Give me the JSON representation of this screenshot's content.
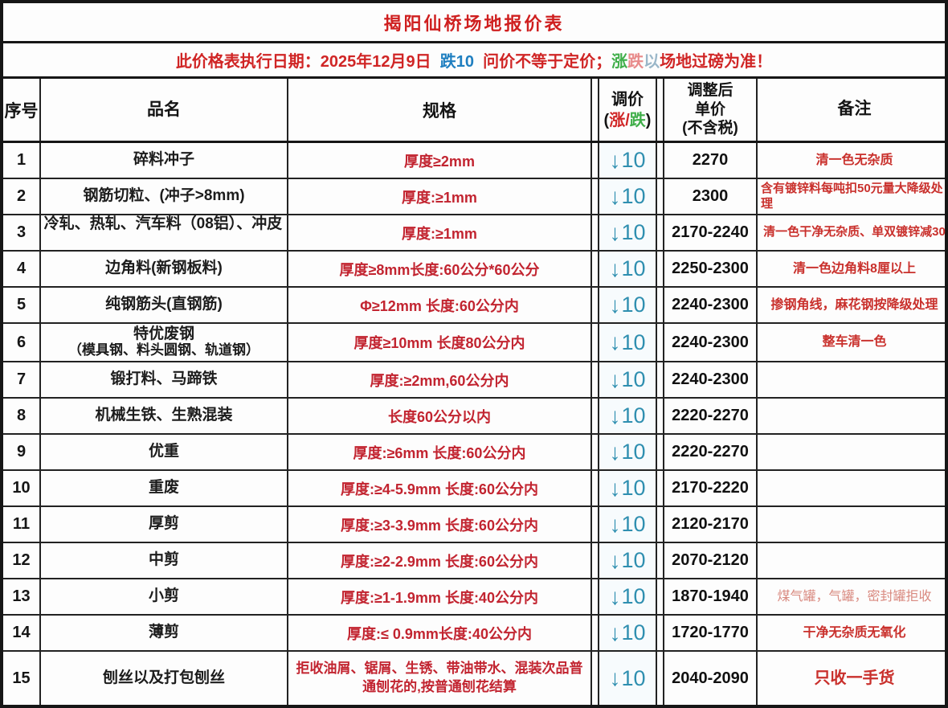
{
  "title": "揭阳仙桥场地报价表",
  "notice": {
    "segments": [
      {
        "text": "此价格表执行日期：2025年12月9日  "
      },
      {
        "text": "跌10"
      },
      {
        "text": "  问价不等于定价；"
      },
      {
        "text": "涨"
      },
      {
        "text": "跌"
      },
      {
        "text": "以"
      },
      {
        "text": "场地过磅为准！"
      }
    ]
  },
  "header": {
    "seq": "序号",
    "name": "品名",
    "spec": "规格",
    "adjust_title": "调价",
    "adjust_open": "(",
    "adjust_up": "涨",
    "adjust_slash": "/",
    "adjust_down": "跌",
    "adjust_close": ")",
    "price_line1": "调整后",
    "price_line2": "单价",
    "price_line3": "(不含税)",
    "remark": "备注"
  },
  "colors": {
    "title_red": "#cf1f1f",
    "notice_red": "#d02525",
    "notice_blue": "#1f7fc0",
    "notice_green": "#3fae49",
    "spec_red": "#c22430",
    "adjust_blue": "#2f8fb0",
    "remark_red": "#c9302c",
    "border_black": "#161616"
  },
  "rows": [
    {
      "seq": "1",
      "name": "碎料冲子",
      "name2": "",
      "spec": "厚度≥2mm",
      "arrow": "↓",
      "amount": "10",
      "price": "2270",
      "remark": "清一色无杂质"
    },
    {
      "seq": "2",
      "name": "钢筋切粒、(冲子>8mm)",
      "name2": "",
      "spec": "厚度:≥1mm",
      "arrow": "↓",
      "amount": "10",
      "price": "2300",
      "remark": "含有镀锌料每吨扣50元量大降级处理"
    },
    {
      "seq": "3",
      "name": "冷轧、热轧、汽车料（08铝）、冲皮",
      "name2": "",
      "spec": "厚度:≥1mm",
      "arrow": "↓",
      "amount": "10",
      "price": "2170-2240",
      "remark": "清一色干净无杂质、单双镀锌减30"
    },
    {
      "seq": "4",
      "name": "边角料(新钢板料)",
      "name2": "",
      "spec": "厚度≥8mm长度:60公分*60公分",
      "arrow": "↓",
      "amount": "10",
      "price": "2250-2300",
      "remark": "清一色边角料8厘以上"
    },
    {
      "seq": "5",
      "name": "纯钢筋头(直钢筋)",
      "name2": "",
      "spec": "Φ≥12mm 长度:60公分内",
      "arrow": "↓",
      "amount": "10",
      "price": "2240-2300",
      "remark": "掺钢角线，麻花钢按降级处理"
    },
    {
      "seq": "6",
      "name": "特优废钢",
      "name2": "（模具钢、料头圆钢、轨道钢）",
      "spec": "厚度≥10mm 长度80公分内",
      "arrow": "↓",
      "amount": "10",
      "price": "2240-2300",
      "remark": "整车清一色"
    },
    {
      "seq": "7",
      "name": "锻打料、马蹄铁",
      "name2": "",
      "spec": "厚度:≥2mm,60公分内",
      "arrow": "↓",
      "amount": "10",
      "price": "2240-2300",
      "remark": ""
    },
    {
      "seq": "8",
      "name": "机械生铁、生熟混装",
      "name2": "",
      "spec": "长度60公分以内",
      "arrow": "↓",
      "amount": "10",
      "price": "2220-2270",
      "remark": ""
    },
    {
      "seq": "9",
      "name": "优重",
      "name2": "",
      "spec": "厚度:≥6mm 长度:60公分内",
      "arrow": "↓",
      "amount": "10",
      "price": "2220-2270",
      "remark": ""
    },
    {
      "seq": "10",
      "name": "重废",
      "name2": "",
      "spec": "厚度:≥4-5.9mm 长度:60公分内",
      "arrow": "↓",
      "amount": "10",
      "price": "2170-2220",
      "remark": ""
    },
    {
      "seq": "11",
      "name": "厚剪",
      "name2": "",
      "spec": "厚度:≥3-3.9mm 长度:60公分内",
      "arrow": "↓",
      "amount": "10",
      "price": "2120-2170",
      "remark": ""
    },
    {
      "seq": "12",
      "name": "中剪",
      "name2": "",
      "spec": "厚度:≥2-2.9mm 长度:60公分内",
      "arrow": "↓",
      "amount": "10",
      "price": "2070-2120",
      "remark": ""
    },
    {
      "seq": "13",
      "name": "小剪",
      "name2": "",
      "spec": "厚度:≥1-1.9mm 长度:40公分内",
      "arrow": "↓",
      "amount": "10",
      "price": "1870-1940",
      "remark": "煤气罐，气罐，密封罐拒收"
    },
    {
      "seq": "14",
      "name": "薄剪",
      "name2": "",
      "spec": "厚度:≤ 0.9mm长度:40公分内",
      "arrow": "↓",
      "amount": "10",
      "price": "1720-1770",
      "remark": "干净无杂质无氧化"
    },
    {
      "seq": "15",
      "name": "刨丝以及打包刨丝",
      "name2": "",
      "spec": "拒收油屑、锯屑、生锈、带油带水、混装次品普通刨花的,按普通刨花结算",
      "arrow": "↓",
      "amount": "10",
      "price": "2040-2090",
      "remark": "只收一手货"
    }
  ]
}
